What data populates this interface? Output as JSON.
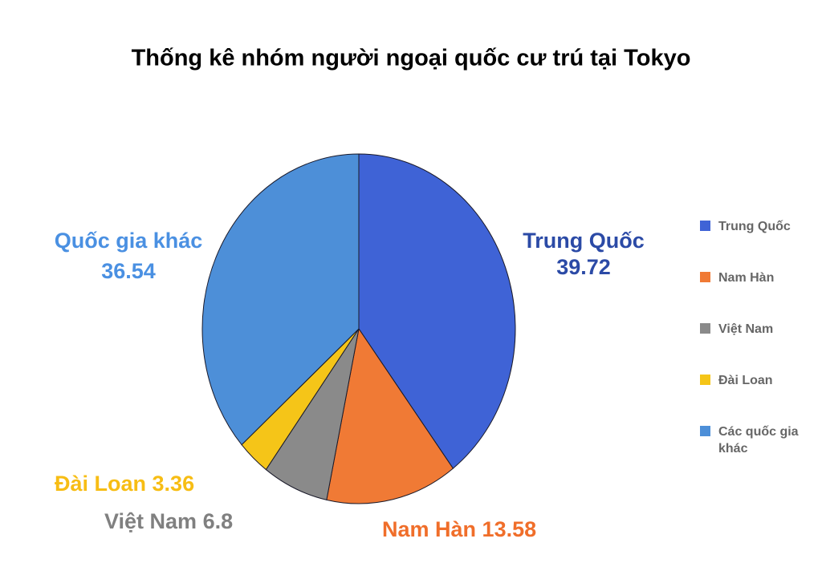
{
  "chart_data": {
    "type": "pie",
    "title": "Thống kê nhóm người ngoại quốc cư trú tại Tokyo",
    "categories": [
      "Trung Quốc",
      "Nam Hàn",
      "Việt Nam",
      "Đài Loan",
      "Các quốc gia khác"
    ],
    "data_label_names": [
      "Trung Quốc",
      "Nam Hàn",
      "Việt Nam",
      "Đài Loan",
      "Quốc gia khác"
    ],
    "values": [
      39.72,
      13.58,
      6.8,
      3.36,
      36.54
    ],
    "colors": [
      "#3f63d6",
      "#f07a35",
      "#8a8a8a",
      "#f5c518",
      "#4d8fd8"
    ],
    "label_colors": [
      "#2b4aa6",
      "#f06e2a",
      "#808080",
      "#f7bd14",
      "#4a90e2"
    ],
    "legend": "right"
  }
}
